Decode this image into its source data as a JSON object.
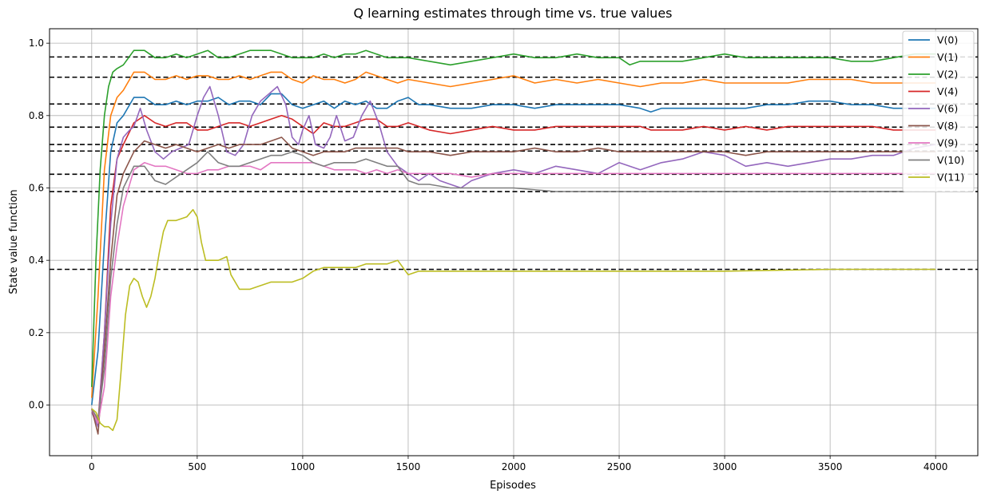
{
  "chart_data": {
    "type": "line",
    "title": "Q learning estimates through time vs. true values",
    "xlabel": "Episodes",
    "ylabel": "State value function",
    "xlim": [
      -200,
      4200
    ],
    "ylim": [
      -0.14,
      1.04
    ],
    "xticks": [
      0,
      500,
      1000,
      1500,
      2000,
      2500,
      3000,
      3500,
      4000
    ],
    "yticks": [
      0.0,
      0.2,
      0.4,
      0.6,
      0.8,
      1.0
    ],
    "grid": true,
    "legend_position": "top-right",
    "true_values_style": "black dashed horizontal lines",
    "true_values": [
      0.962,
      0.906,
      0.832,
      0.768,
      0.72,
      0.702,
      0.638,
      0.59,
      0.375
    ],
    "series": [
      {
        "name": "V(0)",
        "color": "#1f77b4",
        "x": [
          0,
          30,
          60,
          90,
          120,
          150,
          200,
          250,
          300,
          350,
          400,
          450,
          500,
          550,
          600,
          650,
          700,
          750,
          800,
          850,
          900,
          950,
          1000,
          1050,
          1100,
          1150,
          1200,
          1250,
          1300,
          1350,
          1400,
          1450,
          1500,
          1550,
          1600,
          1700,
          1800,
          1900,
          2000,
          2100,
          2200,
          2300,
          2400,
          2500,
          2600,
          2650,
          2700,
          2800,
          2900,
          3000,
          3100,
          3200,
          3300,
          3400,
          3500,
          3600,
          3700,
          3800,
          3900,
          4000
        ],
        "y": [
          0.0,
          0.15,
          0.45,
          0.7,
          0.78,
          0.8,
          0.85,
          0.85,
          0.83,
          0.83,
          0.84,
          0.83,
          0.84,
          0.84,
          0.85,
          0.83,
          0.84,
          0.84,
          0.83,
          0.86,
          0.86,
          0.83,
          0.82,
          0.83,
          0.84,
          0.82,
          0.84,
          0.83,
          0.84,
          0.82,
          0.82,
          0.84,
          0.85,
          0.83,
          0.83,
          0.82,
          0.82,
          0.83,
          0.83,
          0.82,
          0.83,
          0.83,
          0.83,
          0.83,
          0.82,
          0.81,
          0.82,
          0.82,
          0.82,
          0.82,
          0.82,
          0.83,
          0.83,
          0.84,
          0.84,
          0.83,
          0.83,
          0.82,
          0.82,
          0.82
        ]
      },
      {
        "name": "V(1)",
        "color": "#ff7f0e",
        "x": [
          0,
          30,
          60,
          90,
          120,
          150,
          200,
          250,
          300,
          350,
          400,
          450,
          500,
          550,
          600,
          650,
          700,
          750,
          800,
          850,
          900,
          950,
          1000,
          1050,
          1100,
          1150,
          1200,
          1250,
          1300,
          1350,
          1400,
          1450,
          1500,
          1600,
          1700,
          1800,
          1900,
          2000,
          2100,
          2200,
          2300,
          2400,
          2500,
          2600,
          2700,
          2800,
          2900,
          3000,
          3100,
          3200,
          3300,
          3400,
          3500,
          3600,
          3700,
          3800,
          3900,
          4000
        ],
        "y": [
          0.02,
          0.3,
          0.65,
          0.8,
          0.85,
          0.87,
          0.92,
          0.92,
          0.9,
          0.9,
          0.91,
          0.9,
          0.91,
          0.91,
          0.9,
          0.9,
          0.91,
          0.9,
          0.91,
          0.92,
          0.92,
          0.9,
          0.89,
          0.91,
          0.9,
          0.9,
          0.89,
          0.9,
          0.92,
          0.91,
          0.9,
          0.89,
          0.9,
          0.89,
          0.88,
          0.89,
          0.9,
          0.91,
          0.89,
          0.9,
          0.89,
          0.9,
          0.89,
          0.88,
          0.89,
          0.89,
          0.9,
          0.89,
          0.89,
          0.89,
          0.89,
          0.9,
          0.9,
          0.9,
          0.89,
          0.89,
          0.89,
          0.89
        ]
      },
      {
        "name": "V(2)",
        "color": "#2ca02c",
        "x": [
          0,
          20,
          40,
          60,
          80,
          100,
          120,
          150,
          200,
          250,
          300,
          350,
          400,
          450,
          500,
          550,
          600,
          650,
          700,
          750,
          800,
          850,
          900,
          950,
          1000,
          1050,
          1100,
          1150,
          1200,
          1250,
          1300,
          1350,
          1400,
          1450,
          1500,
          1600,
          1700,
          1800,
          1900,
          2000,
          2100,
          2200,
          2300,
          2400,
          2500,
          2550,
          2600,
          2700,
          2800,
          2900,
          3000,
          3100,
          3200,
          3300,
          3400,
          3500,
          3600,
          3700,
          3800,
          3900,
          4000
        ],
        "y": [
          0.05,
          0.4,
          0.65,
          0.8,
          0.88,
          0.92,
          0.93,
          0.94,
          0.98,
          0.98,
          0.96,
          0.96,
          0.97,
          0.96,
          0.97,
          0.98,
          0.96,
          0.96,
          0.97,
          0.98,
          0.98,
          0.98,
          0.97,
          0.96,
          0.96,
          0.96,
          0.97,
          0.96,
          0.97,
          0.97,
          0.98,
          0.97,
          0.96,
          0.96,
          0.96,
          0.95,
          0.94,
          0.95,
          0.96,
          0.97,
          0.96,
          0.96,
          0.97,
          0.96,
          0.96,
          0.94,
          0.95,
          0.95,
          0.95,
          0.96,
          0.97,
          0.96,
          0.96,
          0.96,
          0.96,
          0.96,
          0.95,
          0.95,
          0.96,
          0.97,
          0.97
        ]
      },
      {
        "name": "V(4)",
        "color": "#d62728",
        "x": [
          0,
          30,
          60,
          90,
          120,
          150,
          200,
          250,
          300,
          350,
          400,
          450,
          500,
          550,
          600,
          650,
          700,
          750,
          800,
          850,
          900,
          950,
          1000,
          1050,
          1100,
          1150,
          1200,
          1250,
          1300,
          1350,
          1400,
          1450,
          1500,
          1600,
          1700,
          1800,
          1900,
          2000,
          2100,
          2200,
          2300,
          2400,
          2500,
          2600,
          2650,
          2700,
          2800,
          2900,
          3000,
          3100,
          3200,
          3300,
          3400,
          3500,
          3600,
          3700,
          3800,
          3900,
          4000
        ],
        "y": [
          -0.01,
          -0.05,
          0.2,
          0.55,
          0.68,
          0.72,
          0.78,
          0.8,
          0.78,
          0.77,
          0.78,
          0.78,
          0.76,
          0.76,
          0.77,
          0.78,
          0.78,
          0.77,
          0.78,
          0.79,
          0.8,
          0.79,
          0.77,
          0.75,
          0.78,
          0.77,
          0.77,
          0.78,
          0.79,
          0.79,
          0.77,
          0.77,
          0.78,
          0.76,
          0.75,
          0.76,
          0.77,
          0.76,
          0.76,
          0.77,
          0.77,
          0.77,
          0.77,
          0.77,
          0.76,
          0.76,
          0.76,
          0.77,
          0.76,
          0.77,
          0.76,
          0.77,
          0.77,
          0.77,
          0.77,
          0.77,
          0.76,
          0.76,
          0.76
        ]
      },
      {
        "name": "V(6)",
        "color": "#9467bd",
        "x": [
          0,
          30,
          60,
          90,
          120,
          150,
          180,
          200,
          230,
          260,
          300,
          340,
          380,
          420,
          460,
          500,
          530,
          560,
          600,
          640,
          680,
          720,
          760,
          800,
          840,
          880,
          920,
          950,
          980,
          1000,
          1030,
          1060,
          1100,
          1130,
          1160,
          1200,
          1240,
          1280,
          1320,
          1360,
          1400,
          1450,
          1500,
          1550,
          1600,
          1650,
          1700,
          1750,
          1800,
          1900,
          2000,
          2100,
          2200,
          2300,
          2400,
          2500,
          2600,
          2700,
          2800,
          2900,
          3000,
          3100,
          3200,
          3300,
          3400,
          3500,
          3600,
          3700,
          3800,
          3900,
          4000
        ],
        "y": [
          -0.02,
          -0.06,
          0.2,
          0.5,
          0.68,
          0.74,
          0.76,
          0.77,
          0.82,
          0.76,
          0.7,
          0.68,
          0.7,
          0.71,
          0.72,
          0.8,
          0.85,
          0.88,
          0.8,
          0.7,
          0.69,
          0.72,
          0.8,
          0.84,
          0.86,
          0.88,
          0.83,
          0.74,
          0.72,
          0.76,
          0.8,
          0.72,
          0.71,
          0.74,
          0.8,
          0.73,
          0.74,
          0.8,
          0.84,
          0.78,
          0.7,
          0.66,
          0.64,
          0.62,
          0.64,
          0.62,
          0.61,
          0.6,
          0.62,
          0.64,
          0.65,
          0.64,
          0.66,
          0.65,
          0.64,
          0.67,
          0.65,
          0.67,
          0.68,
          0.7,
          0.69,
          0.66,
          0.67,
          0.66,
          0.67,
          0.68,
          0.68,
          0.69,
          0.69,
          0.71,
          0.72
        ]
      },
      {
        "name": "V(8)",
        "color": "#8c564b",
        "x": [
          0,
          30,
          60,
          90,
          120,
          150,
          200,
          250,
          300,
          350,
          400,
          450,
          500,
          550,
          600,
          650,
          700,
          750,
          800,
          850,
          900,
          950,
          1000,
          1050,
          1100,
          1150,
          1200,
          1250,
          1300,
          1350,
          1400,
          1450,
          1500,
          1600,
          1700,
          1800,
          1900,
          2000,
          2100,
          2200,
          2300,
          2400,
          2500,
          2600,
          2700,
          2800,
          2900,
          3000,
          3100,
          3200,
          3300,
          3400,
          3500,
          3600,
          3700,
          3800,
          3900,
          4000
        ],
        "y": [
          -0.01,
          -0.08,
          0.15,
          0.4,
          0.58,
          0.64,
          0.7,
          0.73,
          0.72,
          0.71,
          0.72,
          0.71,
          0.7,
          0.71,
          0.72,
          0.71,
          0.72,
          0.72,
          0.72,
          0.73,
          0.74,
          0.71,
          0.7,
          0.69,
          0.7,
          0.7,
          0.7,
          0.71,
          0.71,
          0.71,
          0.71,
          0.71,
          0.7,
          0.7,
          0.69,
          0.7,
          0.7,
          0.7,
          0.71,
          0.7,
          0.7,
          0.71,
          0.7,
          0.7,
          0.7,
          0.7,
          0.7,
          0.7,
          0.69,
          0.7,
          0.7,
          0.7,
          0.7,
          0.7,
          0.7,
          0.7,
          0.7,
          0.7
        ]
      },
      {
        "name": "V(9)",
        "color": "#e377c2",
        "x": [
          0,
          30,
          60,
          90,
          120,
          150,
          200,
          250,
          300,
          350,
          400,
          450,
          500,
          550,
          600,
          650,
          700,
          750,
          800,
          850,
          900,
          950,
          1000,
          1050,
          1100,
          1150,
          1200,
          1250,
          1300,
          1350,
          1400,
          1450,
          1500,
          1600,
          1700,
          1800,
          1900,
          2000,
          2100,
          2200,
          2300,
          2400,
          2500,
          2600,
          2700,
          2800,
          2900,
          3000,
          3100,
          3200,
          3300,
          3400,
          3500,
          3600,
          3700,
          3800,
          3900,
          4000
        ],
        "y": [
          -0.01,
          -0.05,
          0.05,
          0.3,
          0.44,
          0.55,
          0.65,
          0.67,
          0.66,
          0.66,
          0.65,
          0.64,
          0.64,
          0.65,
          0.65,
          0.66,
          0.66,
          0.66,
          0.65,
          0.67,
          0.67,
          0.67,
          0.67,
          0.67,
          0.66,
          0.65,
          0.65,
          0.65,
          0.64,
          0.65,
          0.64,
          0.65,
          0.64,
          0.64,
          0.64,
          0.63,
          0.64,
          0.64,
          0.64,
          0.64,
          0.64,
          0.64,
          0.64,
          0.64,
          0.64,
          0.64,
          0.64,
          0.64,
          0.64,
          0.64,
          0.64,
          0.64,
          0.64,
          0.64,
          0.64,
          0.64,
          0.64,
          0.64
        ]
      },
      {
        "name": "V(10)",
        "color": "#7f7f7f",
        "x": [
          0,
          30,
          60,
          90,
          120,
          150,
          200,
          250,
          300,
          350,
          400,
          450,
          500,
          550,
          600,
          650,
          700,
          750,
          800,
          850,
          900,
          950,
          1000,
          1050,
          1100,
          1150,
          1200,
          1250,
          1300,
          1350,
          1400,
          1450,
          1500,
          1550,
          1600,
          1700,
          1800,
          1900,
          2000,
          2200,
          2400,
          2600,
          2800,
          3000,
          3200,
          3400,
          3600,
          3800,
          4000
        ],
        "y": [
          -0.01,
          -0.04,
          0.1,
          0.35,
          0.5,
          0.6,
          0.66,
          0.66,
          0.62,
          0.61,
          0.63,
          0.65,
          0.67,
          0.7,
          0.67,
          0.66,
          0.66,
          0.67,
          0.68,
          0.69,
          0.69,
          0.7,
          0.69,
          0.67,
          0.66,
          0.67,
          0.67,
          0.67,
          0.68,
          0.67,
          0.66,
          0.66,
          0.62,
          0.61,
          0.61,
          0.6,
          0.6,
          0.6,
          0.6,
          0.59,
          0.59,
          0.59,
          0.59,
          0.59,
          0.59,
          0.59,
          0.59,
          0.59,
          0.59
        ]
      },
      {
        "name": "V(11)",
        "color": "#bcbd22",
        "x": [
          0,
          20,
          40,
          60,
          80,
          100,
          120,
          140,
          160,
          180,
          200,
          220,
          240,
          260,
          280,
          300,
          320,
          340,
          360,
          400,
          450,
          480,
          500,
          520,
          540,
          600,
          640,
          660,
          700,
          750,
          800,
          850,
          900,
          950,
          1000,
          1050,
          1100,
          1150,
          1200,
          1250,
          1300,
          1350,
          1400,
          1450,
          1500,
          1550,
          1600,
          1700,
          1800,
          1900,
          2000,
          2500,
          3000,
          3500,
          4000
        ],
        "y": [
          -0.01,
          -0.02,
          -0.05,
          -0.06,
          -0.06,
          -0.07,
          -0.04,
          0.1,
          0.25,
          0.33,
          0.35,
          0.34,
          0.3,
          0.27,
          0.3,
          0.35,
          0.42,
          0.48,
          0.51,
          0.51,
          0.52,
          0.54,
          0.52,
          0.45,
          0.4,
          0.4,
          0.41,
          0.36,
          0.32,
          0.32,
          0.33,
          0.34,
          0.34,
          0.34,
          0.35,
          0.37,
          0.38,
          0.38,
          0.38,
          0.38,
          0.39,
          0.39,
          0.39,
          0.4,
          0.36,
          0.37,
          0.37,
          0.37,
          0.37,
          0.37,
          0.37,
          0.37,
          0.37,
          0.375,
          0.375
        ]
      }
    ]
  }
}
